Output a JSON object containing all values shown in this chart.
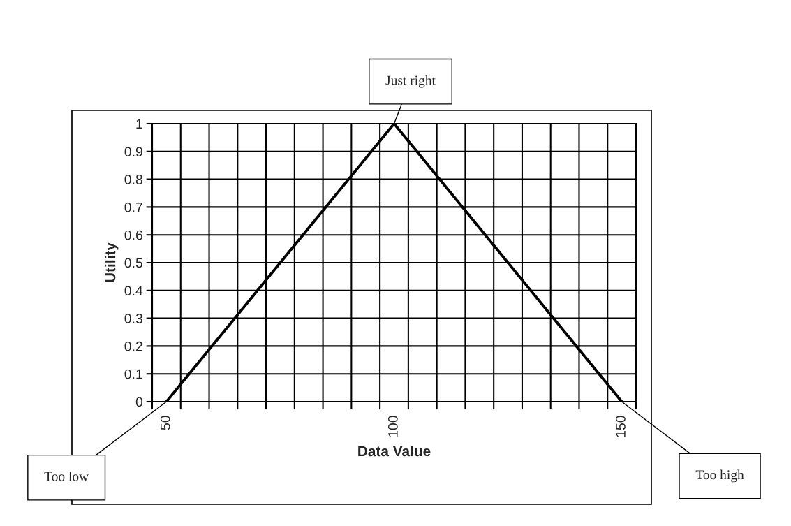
{
  "chart_data": {
    "type": "line",
    "xlabel": "Data Value",
    "ylabel": "Utility",
    "categories": [
      "50",
      null,
      null,
      null,
      null,
      null,
      null,
      null,
      "100",
      null,
      null,
      null,
      null,
      null,
      null,
      null,
      "150"
    ],
    "values": [
      0,
      0.125,
      0.25,
      0.375,
      0.5,
      0.625,
      0.75,
      0.875,
      1,
      0.875,
      0.75,
      0.625,
      0.5,
      0.375,
      0.25,
      0.125,
      0
    ],
    "color": "#000000",
    "marker": "none",
    "line_style": "solid",
    "ylim": [
      0,
      1
    ],
    "yticks": [
      0,
      0.1,
      0.2,
      0.3,
      0.4,
      0.5,
      0.6,
      0.7,
      0.8,
      0.9,
      1
    ],
    "grid": true,
    "legend": false,
    "annotations": [
      {
        "text": "Just right",
        "x": "100",
        "y": 1
      },
      "Too low",
      "Too high"
    ]
  }
}
